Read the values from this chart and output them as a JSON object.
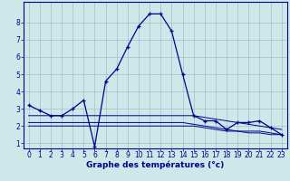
{
  "xlabel": "Graphe des températures (°c)",
  "background_color": "#cce8e8",
  "grid_color": "#aabbcc",
  "line_color": "#00008b",
  "x_hours": [
    0,
    1,
    2,
    3,
    4,
    5,
    6,
    7,
    8,
    9,
    10,
    11,
    12,
    13,
    14,
    15,
    16,
    17,
    18,
    19,
    20,
    21,
    22,
    23
  ],
  "main_line": [
    3.2,
    2.9,
    2.6,
    2.6,
    3.0,
    3.5,
    0.8,
    4.6,
    5.3,
    6.6,
    7.8,
    8.5,
    8.5,
    7.5,
    5.0,
    2.6,
    2.3,
    2.3,
    1.8,
    2.2,
    2.2,
    2.3,
    1.9,
    1.5
  ],
  "flat_line1": [
    2.6,
    2.6,
    2.6,
    2.6,
    2.6,
    2.6,
    2.6,
    2.6,
    2.6,
    2.6,
    2.6,
    2.6,
    2.6,
    2.6,
    2.6,
    2.6,
    2.5,
    2.4,
    2.3,
    2.2,
    2.1,
    2.0,
    1.9,
    1.8
  ],
  "flat_line2": [
    2.2,
    2.2,
    2.2,
    2.2,
    2.2,
    2.2,
    2.2,
    2.2,
    2.2,
    2.2,
    2.2,
    2.2,
    2.2,
    2.2,
    2.2,
    2.1,
    2.0,
    1.9,
    1.8,
    1.7,
    1.7,
    1.7,
    1.6,
    1.5
  ],
  "flat_line3": [
    2.0,
    2.0,
    2.0,
    2.0,
    2.0,
    2.0,
    2.0,
    2.0,
    2.0,
    2.0,
    2.0,
    2.0,
    2.0,
    2.0,
    2.0,
    2.0,
    1.9,
    1.8,
    1.7,
    1.7,
    1.6,
    1.6,
    1.5,
    1.5
  ],
  "ylim": [
    0.7,
    9.2
  ],
  "yticks": [
    1,
    2,
    3,
    4,
    5,
    6,
    7,
    8
  ],
  "xticks": [
    0,
    1,
    2,
    3,
    4,
    5,
    6,
    7,
    8,
    9,
    10,
    11,
    12,
    13,
    14,
    15,
    16,
    17,
    18,
    19,
    20,
    21,
    22,
    23
  ],
  "tick_fontsize": 5.5,
  "xlabel_fontsize": 6.5
}
